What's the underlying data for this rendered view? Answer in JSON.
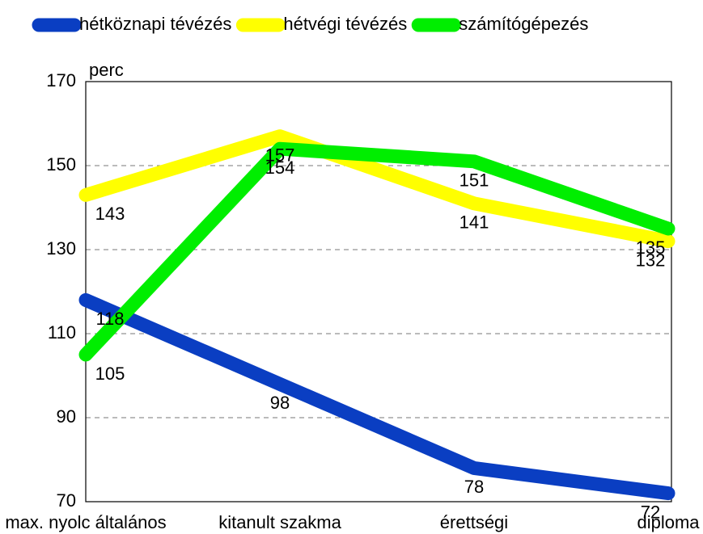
{
  "chart_data": {
    "type": "line",
    "y_label": "perc",
    "categories": [
      "max. nyolc általános",
      "kitanult szakma",
      "érettségi",
      "diploma"
    ],
    "series": [
      {
        "name": "hétköznapi tévézés",
        "color": "#0a3ec2",
        "values": [
          118,
          98,
          78,
          72
        ]
      },
      {
        "name": "hétvégi tévézés",
        "color": "#ffff00",
        "values": [
          143,
          157,
          141,
          132
        ]
      },
      {
        "name": "számítógépezés",
        "color": "#00ee00",
        "values": [
          105,
          154,
          151,
          135
        ]
      }
    ],
    "ylim": [
      70,
      170
    ],
    "yticks": [
      70,
      90,
      110,
      130,
      150,
      170
    ],
    "grid": true,
    "legend": "top"
  }
}
